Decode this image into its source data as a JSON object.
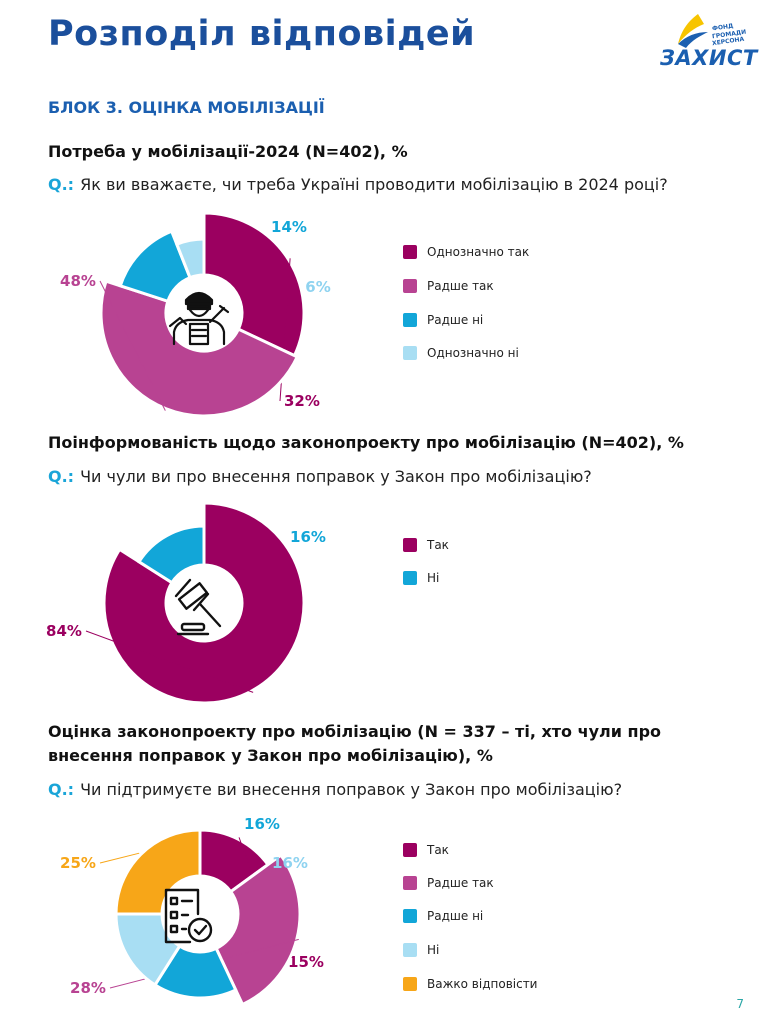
{
  "page": {
    "title": "Розподіл відповідей",
    "number": "7"
  },
  "logo": {
    "small_text": [
      "ФОНД",
      "ГРОМАДИ",
      "ХЕРСОНА"
    ],
    "word": "ЗАХИСТ"
  },
  "block_title": "БЛОК 3. ОЦІНКА МОБІЛІЗАЦІЇ",
  "q_prefix": "Q.:",
  "colors": {
    "title_blue": "#1b4f9c",
    "definitely_yes": "#9b0060",
    "rather_yes": "#b84392",
    "rather_no": "#12a6d8",
    "definitely_no": "#a8def3",
    "hard_to_say": "#f7a618"
  },
  "sections": [
    {
      "title_lines": [
        "Потреба у мобілізації-2024 (N=402), %"
      ],
      "question": "Як ви вважаєте, чи треба Україні проводити мобілізацію в 2024 році?",
      "icon": "soldier-icon"
    },
    {
      "title_lines": [
        "Поінформованість щодо законопроекту про мобілізацію (N=402), %"
      ],
      "question": "Чи чули ви про внесення поправок у Закон про мобілізацію?",
      "icon": "gavel-icon"
    },
    {
      "title_lines": [
        "Оцінка законопроекту про мобілізацію (N = 337 – ті, хто чули про",
        "внесення поправок у Закон про мобілізацію), %"
      ],
      "question": "Чи підтримуєте ви внесення поправок у Закон про мобілізацію?",
      "icon": "checklist-icon"
    }
  ],
  "chart_data": [
    {
      "type": "pie",
      "title": "Потреба у мобілізації-2024 (N=402), %",
      "unit": "%",
      "legend_position": "right",
      "slices": [
        {
          "label": "Однозначно так",
          "value": 32,
          "display": "32%",
          "color": "#9b0060"
        },
        {
          "label": "Радше так",
          "value": 48,
          "display": "48%",
          "color": "#b84392"
        },
        {
          "label": "Радше ні",
          "value": 14,
          "display": "14%",
          "color": "#12a6d8"
        },
        {
          "label": "Однозначно ні",
          "value": 6,
          "display": "6%",
          "color": "#a8def3"
        }
      ]
    },
    {
      "type": "pie",
      "title": "Поінформованість щодо законопроекту про мобілізацію (N=402), %",
      "unit": "%",
      "legend_position": "right",
      "slices": [
        {
          "label": "Так",
          "value": 84,
          "display": "84%",
          "color": "#9b0060"
        },
        {
          "label": "Ні",
          "value": 16,
          "display": "16%",
          "color": "#12a6d8"
        }
      ]
    },
    {
      "type": "pie",
      "title": "Оцінка законопроекту про мобілізацію (N = 337 – ті, хто чули про внесення поправок у Закон про мобілізацію), %",
      "unit": "%",
      "legend_position": "right",
      "slices": [
        {
          "label": "Так",
          "value": 15,
          "display": "15%",
          "color": "#9b0060"
        },
        {
          "label": "Радше так",
          "value": 28,
          "display": "28%",
          "color": "#b84392"
        },
        {
          "label": "Радше ні",
          "value": 16,
          "display": "16%",
          "color": "#12a6d8"
        },
        {
          "label": "Ні",
          "value": 16,
          "display": "16%",
          "color": "#a8def3"
        },
        {
          "label": "Важко відповісти",
          "value": 25,
          "display": "25%",
          "color": "#f7a618"
        }
      ]
    }
  ]
}
